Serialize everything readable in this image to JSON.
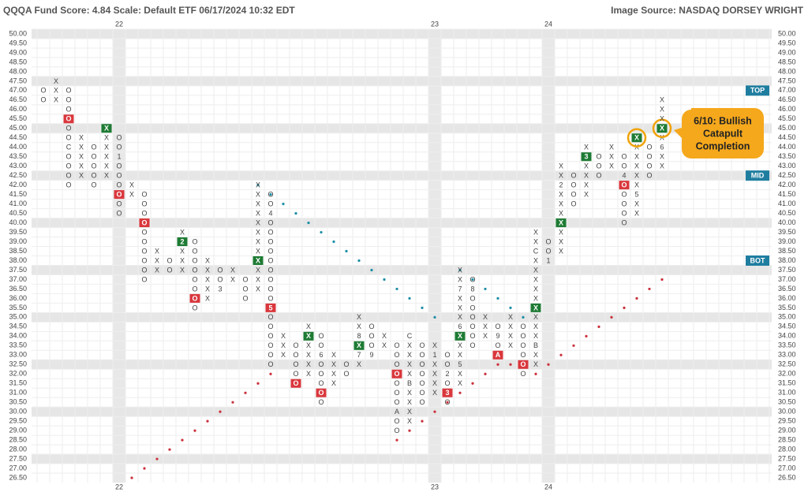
{
  "chart_data": {
    "type": "point-figure",
    "title": "QQQA Fund Score: 4.84 Scale: Default ETF 06/17/2024 10:32 EDT",
    "source": "Image Source: NASDAQ DORSEY WRIGHT",
    "ylim": [
      26.5,
      50
    ],
    "yticks": [
      {
        "value": 50,
        "label": "50.00"
      },
      {
        "value": 49.5,
        "label": "49.50"
      },
      {
        "value": 49,
        "label": "49.00"
      },
      {
        "value": 48.5,
        "label": "48.50"
      },
      {
        "value": 48,
        "label": "48.00"
      },
      {
        "value": 47.5,
        "label": "47.50"
      },
      {
        "value": 47,
        "label": "47.00"
      },
      {
        "value": 46.5,
        "label": "46.50"
      },
      {
        "value": 46,
        "label": "46.00"
      },
      {
        "value": 45.5,
        "label": "45.50"
      },
      {
        "value": 45,
        "label": "45.00"
      },
      {
        "value": 44.5,
        "label": "44.50"
      },
      {
        "value": 44,
        "label": "44.00"
      },
      {
        "value": 43.5,
        "label": "43.50"
      },
      {
        "value": 43,
        "label": "43.00"
      },
      {
        "value": 42.5,
        "label": "42.50"
      },
      {
        "value": 42,
        "label": "42.00"
      },
      {
        "value": 41.5,
        "label": "41.50"
      },
      {
        "value": 41,
        "label": "41.00"
      },
      {
        "value": 40.5,
        "label": "40.50"
      },
      {
        "value": 40,
        "label": "40.00"
      },
      {
        "value": 39.5,
        "label": "39.50"
      },
      {
        "value": 39,
        "label": "39.00"
      },
      {
        "value": 38.5,
        "label": "38.50"
      },
      {
        "value": 38,
        "label": "38.00"
      },
      {
        "value": 37.5,
        "label": "37.50"
      },
      {
        "value": 37,
        "label": "37.00"
      },
      {
        "value": 36.5,
        "label": "36.50"
      },
      {
        "value": 36,
        "label": "36.00"
      },
      {
        "value": 35.5,
        "label": "35.50"
      },
      {
        "value": 35,
        "label": "35.00"
      },
      {
        "value": 34.5,
        "label": "34.50"
      },
      {
        "value": 34,
        "label": "34.00"
      },
      {
        "value": 33.5,
        "label": "33.50"
      },
      {
        "value": 33,
        "label": "33.00"
      },
      {
        "value": 32.5,
        "label": "32.50"
      },
      {
        "value": 32,
        "label": "32.00"
      },
      {
        "value": 31.5,
        "label": "31.50"
      },
      {
        "value": 31,
        "label": "31.00"
      },
      {
        "value": 30.5,
        "label": "30.50"
      },
      {
        "value": 30,
        "label": "30.00"
      },
      {
        "value": 29.5,
        "label": "29.50"
      },
      {
        "value": 29,
        "label": "29.00"
      },
      {
        "value": 28.5,
        "label": "28.50"
      },
      {
        "value": 28,
        "label": "28.00"
      },
      {
        "value": 27.5,
        "label": "27.50"
      },
      {
        "value": 27,
        "label": "27.00"
      },
      {
        "value": 26.5,
        "label": "26.50"
      }
    ],
    "year_labels": [
      {
        "column": 6,
        "label": "22"
      },
      {
        "column": 31,
        "label": "23"
      },
      {
        "column": 40,
        "label": "24"
      }
    ],
    "buy_color": "#1e7b34",
    "sell_color": "#d9373c",
    "columns": [
      {
        "type": "O",
        "top": 47,
        "bottom": 46.5
      },
      {
        "type": "X",
        "top": 47.5,
        "bottom": 46.5
      },
      {
        "type": "O",
        "top": 47,
        "bottom": 42,
        "labels": [
          {
            "value": 44,
            "label": "C"
          }
        ],
        "signals": [
          {
            "value": 45.5,
            "kind": "sell"
          }
        ]
      },
      {
        "type": "X",
        "top": 44.5,
        "bottom": 42.5
      },
      {
        "type": "O",
        "top": 44,
        "bottom": 42
      },
      {
        "type": "X",
        "top": 45,
        "bottom": 42.5,
        "signals": [
          {
            "value": 45,
            "kind": "buy"
          }
        ]
      },
      {
        "type": "O",
        "top": 44.5,
        "bottom": 40.5,
        "labels": [
          {
            "value": 43.5,
            "label": "1"
          }
        ],
        "signals": [
          {
            "value": 41.5,
            "kind": "sell"
          }
        ]
      },
      {
        "type": "X",
        "top": 42,
        "bottom": 41.5
      },
      {
        "type": "O",
        "top": 41.5,
        "bottom": 37,
        "signals": [
          {
            "value": 40,
            "kind": "sell"
          }
        ]
      },
      {
        "type": "X",
        "top": 38.5,
        "bottom": 37.5
      },
      {
        "type": "O",
        "top": 38,
        "bottom": 37.5
      },
      {
        "type": "X",
        "top": 39.5,
        "bottom": 37.5,
        "labels": [
          {
            "value": 39,
            "label": "2"
          }
        ],
        "signals": [
          {
            "value": 39,
            "kind": "buy"
          }
        ]
      },
      {
        "type": "O",
        "top": 39,
        "bottom": 35.5,
        "signals": [
          {
            "value": 36,
            "kind": "sell"
          }
        ]
      },
      {
        "type": "X",
        "top": 38,
        "bottom": 36
      },
      {
        "type": "O",
        "top": 37.5,
        "bottom": 36.5,
        "labels": [
          {
            "value": 36.5,
            "label": "3"
          }
        ]
      },
      {
        "type": "X",
        "top": 37.5,
        "bottom": 37
      },
      {
        "type": "O",
        "top": 37,
        "bottom": 36
      },
      {
        "type": "X",
        "top": 42,
        "bottom": 36.5,
        "signals": [
          {
            "value": 38,
            "kind": "buy"
          }
        ]
      },
      {
        "type": "O",
        "top": 41.5,
        "bottom": 32.5,
        "labels": [
          {
            "value": 40.5,
            "label": "4"
          },
          {
            "value": 35.5,
            "label": "5"
          }
        ],
        "signals": [
          {
            "value": 35.5,
            "kind": "sell"
          }
        ]
      },
      {
        "type": "X",
        "top": 34,
        "bottom": 33
      },
      {
        "type": "O",
        "top": 33.5,
        "bottom": 31.5,
        "signals": [
          {
            "value": 31.5,
            "kind": "sell"
          }
        ]
      },
      {
        "type": "X",
        "top": 34.5,
        "bottom": 32,
        "signals": [
          {
            "value": 34,
            "kind": "buy"
          }
        ]
      },
      {
        "type": "O",
        "top": 34,
        "bottom": 30.5,
        "labels": [
          {
            "value": 33,
            "label": "6"
          }
        ],
        "signals": [
          {
            "value": 31,
            "kind": "sell"
          }
        ]
      },
      {
        "type": "X",
        "top": 33,
        "bottom": 31.5
      },
      {
        "type": "O",
        "top": 32.5,
        "bottom": 32
      },
      {
        "type": "X",
        "top": 35,
        "bottom": 32.5,
        "labels": [
          {
            "value": 34,
            "label": "8"
          },
          {
            "value": 33,
            "label": "7"
          }
        ],
        "signals": [
          {
            "value": 33.5,
            "kind": "buy"
          }
        ]
      },
      {
        "type": "O",
        "top": 34.5,
        "bottom": 33,
        "labels": [
          {
            "value": 33,
            "label": "9"
          }
        ]
      },
      {
        "type": "X",
        "top": 34,
        "bottom": 33.5
      },
      {
        "type": "O",
        "top": 33.5,
        "bottom": 29,
        "labels": [
          {
            "value": 30,
            "label": "A"
          }
        ],
        "signals": [
          {
            "value": 32,
            "kind": "sell"
          }
        ]
      },
      {
        "type": "X",
        "top": 34,
        "bottom": 29.5,
        "labels": [
          {
            "value": 34,
            "label": "C"
          },
          {
            "value": 31.5,
            "label": "B"
          }
        ]
      },
      {
        "type": "O",
        "top": 33.5,
        "bottom": 30.5
      },
      {
        "type": "X",
        "top": 33.5,
        "bottom": 31,
        "labels": [
          {
            "value": 33,
            "label": "1"
          }
        ]
      },
      {
        "type": "O",
        "top": 33,
        "bottom": 30.5,
        "labels": [
          {
            "value": 32,
            "label": "2"
          },
          {
            "value": 31,
            "label": "3"
          }
        ],
        "signals": [
          {
            "value": 31,
            "kind": "sell"
          }
        ]
      },
      {
        "type": "X",
        "top": 37.5,
        "bottom": 31.5,
        "labels": [
          {
            "value": 36.5,
            "label": "7"
          },
          {
            "value": 34.5,
            "label": "6"
          },
          {
            "value": 32.5,
            "label": "5"
          }
        ],
        "signals": [
          {
            "value": 34,
            "kind": "buy"
          }
        ]
      },
      {
        "type": "O",
        "top": 37,
        "bottom": 33.5,
        "labels": [
          {
            "value": 36.5,
            "label": "8"
          }
        ]
      },
      {
        "type": "X",
        "top": 35,
        "bottom": 34
      },
      {
        "type": "O",
        "top": 34.5,
        "bottom": 33,
        "labels": [
          {
            "value": 34,
            "label": "9"
          },
          {
            "value": 33,
            "label": "A"
          }
        ],
        "signals": [
          {
            "value": 33,
            "kind": "sell"
          }
        ]
      },
      {
        "type": "X",
        "top": 35,
        "bottom": 33.5
      },
      {
        "type": "O",
        "top": 34.5,
        "bottom": 32,
        "signals": [
          {
            "value": 32.5,
            "kind": "sell"
          }
        ]
      },
      {
        "type": "X",
        "top": 39.5,
        "bottom": 32.5,
        "labels": [
          {
            "value": 38.5,
            "label": "C"
          },
          {
            "value": 33.5,
            "label": "B"
          }
        ],
        "signals": [
          {
            "value": 35.5,
            "kind": "buy"
          }
        ]
      },
      {
        "type": "O",
        "top": 39,
        "bottom": 38,
        "labels": [
          {
            "value": 38,
            "label": "1"
          }
        ]
      },
      {
        "type": "X",
        "top": 43,
        "bottom": 38.5,
        "labels": [
          {
            "value": 42,
            "label": "2"
          }
        ],
        "signals": [
          {
            "value": 40,
            "kind": "buy"
          }
        ]
      },
      {
        "type": "O",
        "top": 42.5,
        "bottom": 41
      },
      {
        "type": "X",
        "top": 44,
        "bottom": 41.5,
        "labels": [
          {
            "value": 43.5,
            "label": "3"
          }
        ],
        "signals": [
          {
            "value": 43.5,
            "kind": "buy"
          }
        ]
      },
      {
        "type": "O",
        "top": 43.5,
        "bottom": 42.5
      },
      {
        "type": "X",
        "top": 44,
        "bottom": 43
      },
      {
        "type": "O",
        "top": 43.5,
        "bottom": 40,
        "labels": [
          {
            "value": 42.5,
            "label": "4"
          }
        ],
        "signals": [
          {
            "value": 42,
            "kind": "sell"
          }
        ]
      },
      {
        "type": "X",
        "top": 44.5,
        "bottom": 40.5,
        "labels": [
          {
            "value": 41.5,
            "label": "5"
          }
        ],
        "signals": [
          {
            "value": 44.5,
            "kind": "buy",
            "circled": true
          }
        ]
      },
      {
        "type": "O",
        "top": 44,
        "bottom": 42.5
      },
      {
        "type": "X",
        "top": 46.5,
        "bottom": 43,
        "labels": [
          {
            "value": 44,
            "label": "6"
          }
        ],
        "signals": [
          {
            "value": 45,
            "kind": "buy",
            "circled": true
          }
        ]
      }
    ],
    "trendlines": [
      {
        "color": "#c9303a",
        "start_column": 7,
        "values": [
          26.5,
          27,
          27.5,
          28,
          28.5,
          29,
          29.5,
          30,
          30.5,
          31,
          31.5,
          32
        ]
      },
      {
        "color": "#1b8ea6",
        "start_column": 17,
        "values": [
          42,
          41.5,
          41,
          40.5,
          40,
          39.5,
          39,
          38.5,
          38,
          37.5,
          37,
          36.5,
          36,
          35.5,
          35
        ]
      },
      {
        "color": "#c9303a",
        "start_column": 28,
        "values": [
          28.5,
          29,
          29.5,
          30,
          30.5,
          31,
          31.5,
          32,
          32.5,
          32.5,
          32.5
        ]
      },
      {
        "color": "#1b8ea6",
        "start_column": 33,
        "values": [
          37.5,
          37,
          36.5,
          36,
          35.5,
          35
        ]
      },
      {
        "color": "#c9303a",
        "start_column": 39,
        "values": [
          32,
          32.5,
          33,
          33.5,
          34,
          34.5,
          35,
          35.5,
          36,
          36.5,
          37
        ]
      }
    ],
    "zones": [
      {
        "label": "TOP",
        "value": 47
      },
      {
        "label": "MID",
        "value": 42.5
      },
      {
        "label": "BOT",
        "value": 38
      }
    ],
    "callout": {
      "lines": [
        "6/10: Bullish",
        "Catapult",
        "Completion"
      ],
      "column": 49,
      "value": 45
    }
  }
}
